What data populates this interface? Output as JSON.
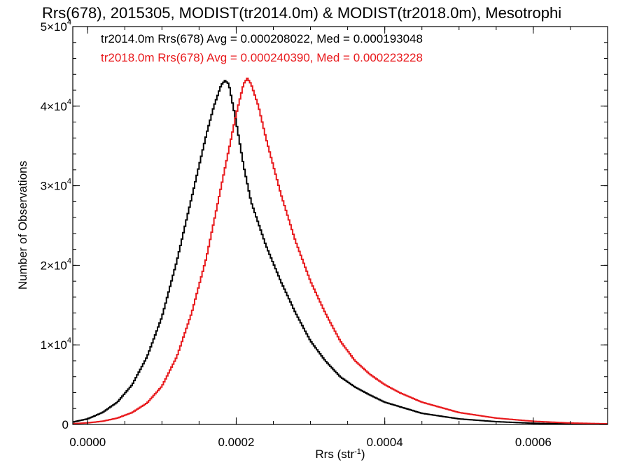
{
  "chart_data": {
    "type": "line",
    "step": true,
    "title": "Rrs(678), 2015305, MODIST(tr2014.0m) & MODIST(tr2018.0m), Mesotrophi",
    "xlabel_base": "Rrs (str",
    "xlabel_sup": "-1",
    "xlabel_close": ")",
    "ylabel": "Number of Observations",
    "xlim": [
      -2e-05,
      0.0007
    ],
    "ylim": [
      0,
      50000
    ],
    "x_ticks": [
      {
        "value": 0.0,
        "label": "0.0000"
      },
      {
        "value": 0.0002,
        "label": "0.0002"
      },
      {
        "value": 0.0004,
        "label": "0.0004"
      },
      {
        "value": 0.0006,
        "label": "0.0006"
      }
    ],
    "y_ticks": [
      {
        "value": 0,
        "base": "0",
        "exp": ""
      },
      {
        "value": 10000,
        "base": "1×10",
        "exp": "4"
      },
      {
        "value": 20000,
        "base": "2×10",
        "exp": "4"
      },
      {
        "value": 30000,
        "base": "3×10",
        "exp": "4"
      },
      {
        "value": 40000,
        "base": "4×10",
        "exp": "4"
      },
      {
        "value": 50000,
        "base": "5×10",
        "exp": "4"
      }
    ],
    "annotations": [
      {
        "text": "tr2014.0m Rrs(678) Avg = 0.000208022, Med = 0.000193048",
        "color": "#000000"
      },
      {
        "text": "tr2018.0m Rrs(678) Avg = 0.000240390, Med = 0.000223228",
        "color": "#e8191c"
      }
    ],
    "series": [
      {
        "color": "#000000",
        "x": [
          -2e-05,
          0.0,
          2e-05,
          4e-05,
          6e-05,
          8e-05,
          0.0001,
          0.00012,
          0.00014,
          0.00016,
          0.00017,
          0.00018,
          0.000185,
          0.00019,
          0.0002,
          0.00021,
          0.00022,
          0.00024,
          0.00026,
          0.00028,
          0.0003,
          0.00032,
          0.00034,
          0.00036,
          0.00038,
          0.0004,
          0.00045,
          0.0005,
          0.00055,
          0.0006,
          0.00065,
          0.0007
        ],
        "y": [
          300,
          700,
          1500,
          2800,
          5000,
          8500,
          13500,
          20500,
          28500,
          36500,
          40000,
          42700,
          43200,
          42800,
          38000,
          32500,
          28000,
          22500,
          18000,
          14000,
          10500,
          8000,
          6000,
          4700,
          3700,
          2800,
          1400,
          700,
          350,
          150,
          70,
          30
        ]
      },
      {
        "color": "#e8191c",
        "x": [
          -2e-05,
          0.0,
          2e-05,
          4e-05,
          6e-05,
          8e-05,
          0.0001,
          0.00012,
          0.00014,
          0.00016,
          0.00018,
          0.0002,
          0.00021,
          0.000215,
          0.00022,
          0.00023,
          0.00024,
          0.00026,
          0.00028,
          0.0003,
          0.00032,
          0.00034,
          0.00036,
          0.00038,
          0.0004,
          0.00042,
          0.00045,
          0.0005,
          0.00055,
          0.0006,
          0.00065,
          0.0007
        ],
        "y": [
          100,
          200,
          400,
          800,
          1500,
          2700,
          4800,
          8500,
          14000,
          21000,
          30000,
          39000,
          42800,
          43500,
          42800,
          40000,
          36000,
          29000,
          23000,
          18000,
          14000,
          10500,
          8000,
          6300,
          5000,
          4000,
          2800,
          1500,
          800,
          400,
          180,
          80
        ]
      }
    ]
  }
}
